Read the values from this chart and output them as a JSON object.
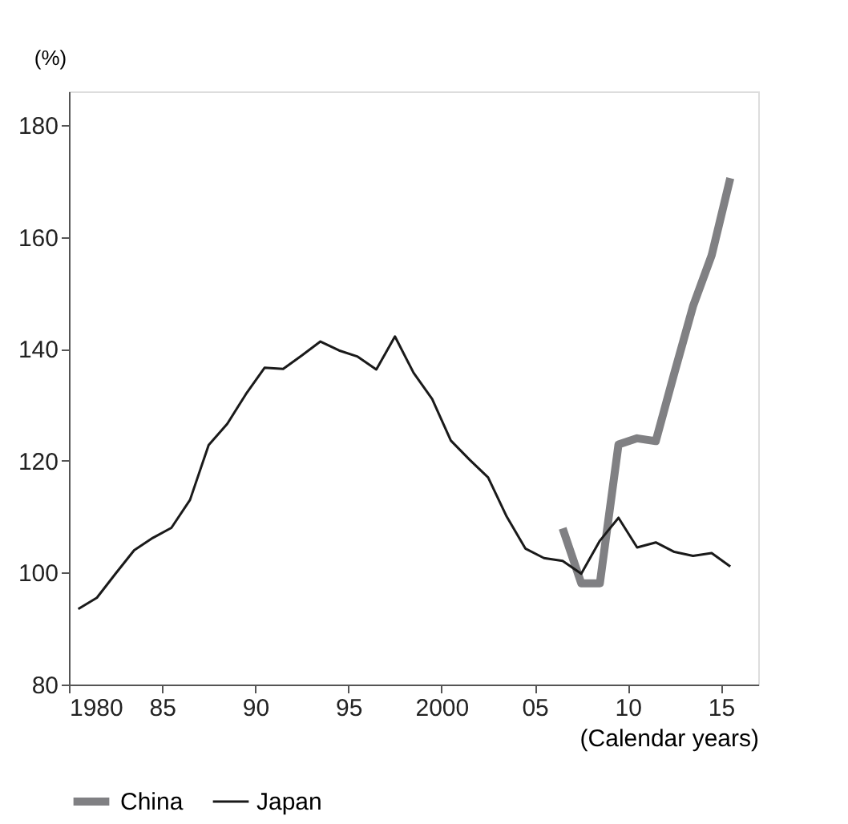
{
  "chart_data": {
    "type": "line",
    "xlabel": "(Calendar years)",
    "ylabel": "(%)",
    "xlim": [
      1980,
      2017
    ],
    "xticks": [
      1980,
      {
        "value": 1985,
        "label": "85"
      },
      {
        "value": 1990,
        "label": "90"
      },
      {
        "value": 1995,
        "label": "95"
      },
      2000,
      {
        "value": 2005,
        "label": "05"
      },
      {
        "value": 2010,
        "label": "10"
      },
      {
        "value": 2015,
        "label": "15"
      }
    ],
    "ylim": [
      80,
      186
    ],
    "yticks": [
      80,
      100,
      120,
      140,
      160,
      180
    ],
    "grid": false,
    "legend": "bottom",
    "marker": "none",
    "line_style": "solid",
    "series": [
      {
        "name": "China",
        "color": "#808083",
        "x": [
          2006.5,
          2007.5,
          2008.5,
          2009.5,
          2010.5,
          2011.5,
          2012.5,
          2013.5,
          2014.5,
          2015.5
        ],
        "values": [
          107.9,
          98.1,
          98.1,
          122.9,
          124,
          123.5,
          135.7,
          147.6,
          156.7,
          170.5
        ]
      },
      {
        "name": "Japan",
        "color": "#1a1a1a",
        "x": [
          1980.5,
          1981.5,
          1982.5,
          1983.5,
          1984.5,
          1985.5,
          1986.5,
          1987.5,
          1988.5,
          1989.5,
          1990.5,
          1991.5,
          1992.5,
          1993.5,
          1994.5,
          1995.5,
          1996.5,
          1997.5,
          1998.5,
          1999.5,
          2000.5,
          2001.5,
          2002.5,
          2003.5,
          2004.5,
          2005.5,
          2006.5,
          2007.5,
          2008.5,
          2009.5,
          2010.5,
          2011.5,
          2012.5,
          2013.5,
          2014.5,
          2015.5
        ],
        "values": [
          93.5,
          95.5,
          99.8,
          104,
          106.2,
          108,
          113,
          122.8,
          126.6,
          131.9,
          136.6,
          136.4,
          138.8,
          141.3,
          139.7,
          138.6,
          136.3,
          142.2,
          135.7,
          131,
          123.6,
          120.2,
          117,
          110,
          104.3,
          102.6,
          102.1,
          99.8,
          105.7,
          109.8,
          104.5,
          105.4,
          103.7,
          103,
          103.5,
          101.1
        ]
      }
    ]
  }
}
